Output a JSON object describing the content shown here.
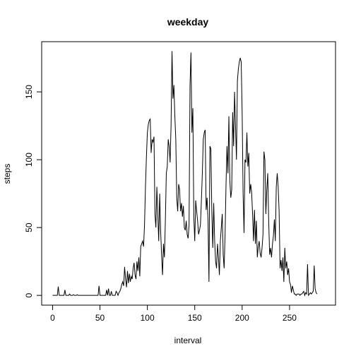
{
  "chart_data": {
    "type": "line",
    "title": "weekday",
    "xlabel": "interval",
    "ylabel": "steps",
    "xlim": [
      -11.5,
      298.5
    ],
    "ylim": [
      -7.2,
      187
    ],
    "xticks": [
      0,
      50,
      100,
      150,
      200,
      250
    ],
    "yticks": [
      0,
      50,
      100,
      150
    ],
    "grid": false,
    "line_color": "#000000",
    "x_start": 0,
    "x_step": 1,
    "values": [
      0.0,
      0.0,
      0.0,
      0.0,
      0.0,
      0.0,
      6.5,
      0.0,
      0.0,
      0.0,
      0.0,
      0.0,
      0.0,
      4.0,
      0.0,
      0.0,
      0.0,
      0.0,
      1.0,
      0.0,
      0.0,
      0.0,
      0.5,
      0.0,
      0.0,
      0.0,
      0.5,
      0.0,
      0.0,
      0.0,
      0.0,
      0.0,
      0.0,
      0.0,
      0.0,
      0.0,
      0.0,
      0.0,
      0.0,
      0.0,
      0.0,
      0.0,
      0.0,
      0.0,
      0.0,
      0.0,
      0.0,
      0.0,
      0.0,
      7.0,
      0.0,
      0.0,
      0.0,
      0.0,
      0.0,
      0.0,
      0.0,
      4.0,
      0.0,
      5.0,
      0.0,
      0.0,
      3.0,
      0.0,
      0.0,
      0.0,
      0.0,
      3.0,
      2.0,
      0.0,
      2.0,
      3.0,
      5.0,
      8.0,
      10.0,
      7.0,
      21.0,
      12.0,
      6.0,
      18.0,
      9.0,
      16.0,
      10.0,
      14.0,
      12.0,
      20.0,
      24.0,
      15.0,
      12.0,
      25.0,
      18.0,
      28.0,
      14.0,
      36.0,
      38.0,
      40.0,
      36.0,
      52.0,
      80.0,
      102.0,
      120.0,
      126.0,
      129.0,
      130.0,
      105.0,
      115.0,
      113.0,
      117.0,
      60.0,
      50.0,
      80.0,
      60.0,
      40.0,
      75.0,
      48.0,
      30.0,
      15.0,
      38.0,
      28.0,
      55.0,
      90.0,
      95.0,
      115.0,
      110.0,
      98.0,
      125.0,
      180.0,
      145.0,
      155.0,
      132.0,
      115.0,
      72.0,
      62.0,
      82.0,
      78.0,
      62.0,
      68.0,
      58.0,
      66.0,
      50.0,
      48.0,
      55.0,
      45.0,
      42.0,
      52.0,
      155.0,
      179.0,
      120.0,
      138.0,
      58.0,
      40.0,
      70.0,
      62.0,
      55.0,
      45.0,
      48.0,
      52.0,
      70.0,
      90.0,
      115.0,
      120.0,
      122.0,
      63.0,
      72.0,
      55.0,
      10.0,
      110.0,
      108.0,
      62.0,
      35.0,
      68.0,
      40.0,
      25.0,
      20.0,
      38.0,
      28.0,
      15.0,
      40.0,
      50.0,
      60.0,
      30.0,
      20.0,
      45.0,
      82.0,
      110.0,
      90.0,
      132.0,
      85.0,
      72.0,
      78.0,
      135.0,
      110.0,
      150.0,
      125.0,
      100.0,
      158.0,
      167.0,
      172.0,
      175.0,
      172.0,
      135.0,
      75.0,
      46.0,
      100.0,
      98.0,
      120.0,
      95.0,
      105.0,
      75.0,
      82.0,
      76.0,
      60.0,
      40.0,
      63.0,
      38.0,
      55.0,
      28.0,
      36.0,
      40.0,
      31.0,
      28.0,
      35.0,
      45.0,
      106.0,
      100.0,
      60.0,
      78.0,
      90.0,
      55.0,
      30.0,
      35.0,
      28.0,
      38.0,
      44.0,
      56.0,
      40.0,
      80.0,
      90.0,
      80.0,
      62.0,
      20.0,
      26.0,
      18.0,
      28.0,
      10.0,
      35.0,
      20.0,
      25.0,
      15.0,
      20.0,
      10.0,
      8.0,
      2.0,
      7.0,
      4.0,
      1.0,
      1.0,
      0.0,
      1.0,
      1.0,
      1.0,
      0.0,
      1.0,
      1.0,
      2.0,
      3.0,
      0.0,
      2.0,
      1.0,
      23.0,
      0.0,
      1.0,
      2.0,
      1.0,
      2.0,
      3.0,
      22.0,
      5.0,
      2.0,
      1.0
    ]
  }
}
